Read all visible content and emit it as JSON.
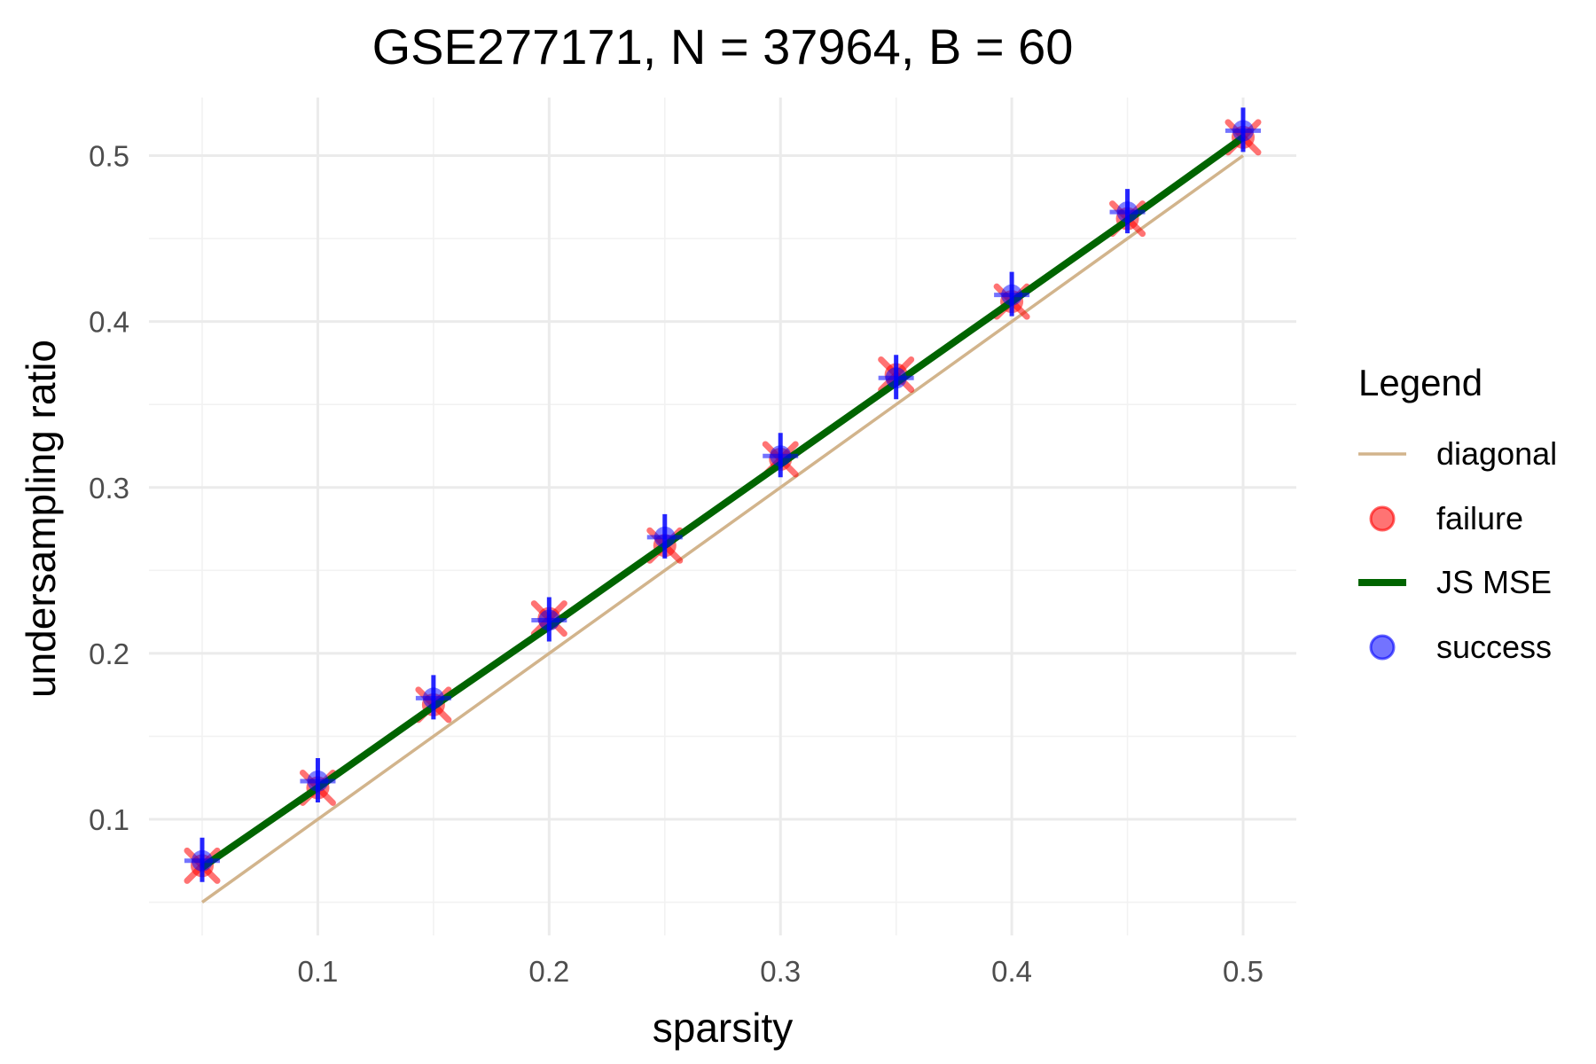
{
  "chart_data": {
    "type": "scatter",
    "title": "GSE277171, N = 37964, B = 60",
    "xlabel": "sparsity",
    "ylabel": "undersampling ratio",
    "xlim": [
      0.027,
      0.523
    ],
    "ylim": [
      0.03,
      0.535
    ],
    "x_ticks": [
      0.1,
      0.2,
      0.3,
      0.4,
      0.5
    ],
    "x_tick_labels": [
      "0.1",
      "0.2",
      "0.3",
      "0.4",
      "0.5"
    ],
    "y_ticks": [
      0.1,
      0.2,
      0.3,
      0.4,
      0.5
    ],
    "y_tick_labels": [
      "0.1",
      "0.2",
      "0.3",
      "0.4",
      "0.5"
    ],
    "grid": true,
    "legend": {
      "title": "Legend",
      "position": "right",
      "entries": [
        {
          "key": "diagonal",
          "label": "diagonal",
          "kind": "line",
          "color": "#d2b48c"
        },
        {
          "key": "failure",
          "label": "failure",
          "kind": "point",
          "color": "#ff0000"
        },
        {
          "key": "js_mse",
          "label": "JS MSE",
          "kind": "line",
          "color": "#006400"
        },
        {
          "key": "success",
          "label": "success",
          "kind": "point",
          "color": "#0000ff"
        }
      ]
    },
    "diagonal": {
      "x": [
        0.05,
        0.5
      ],
      "y": [
        0.05,
        0.5
      ],
      "color": "#d2b48c"
    },
    "js_mse": {
      "x": [
        0.05,
        0.1,
        0.15,
        0.2,
        0.25,
        0.3,
        0.35,
        0.4,
        0.45,
        0.5
      ],
      "y": [
        0.071,
        0.119,
        0.168,
        0.216,
        0.265,
        0.314,
        0.363,
        0.412,
        0.461,
        0.511
      ],
      "color": "#006400"
    },
    "failure": {
      "x": [
        0.05,
        0.1,
        0.15,
        0.2,
        0.25,
        0.3,
        0.35,
        0.4,
        0.45,
        0.5
      ],
      "y": [
        0.072,
        0.119,
        0.169,
        0.221,
        0.265,
        0.317,
        0.368,
        0.412,
        0.462,
        0.511
      ],
      "color": "#ff0000"
    },
    "success": {
      "x": [
        0.05,
        0.1,
        0.15,
        0.2,
        0.25,
        0.3,
        0.35,
        0.4,
        0.45,
        0.5
      ],
      "y": [
        0.075,
        0.123,
        0.173,
        0.22,
        0.27,
        0.319,
        0.366,
        0.416,
        0.466,
        0.515
      ],
      "color": "#0000ff"
    }
  }
}
